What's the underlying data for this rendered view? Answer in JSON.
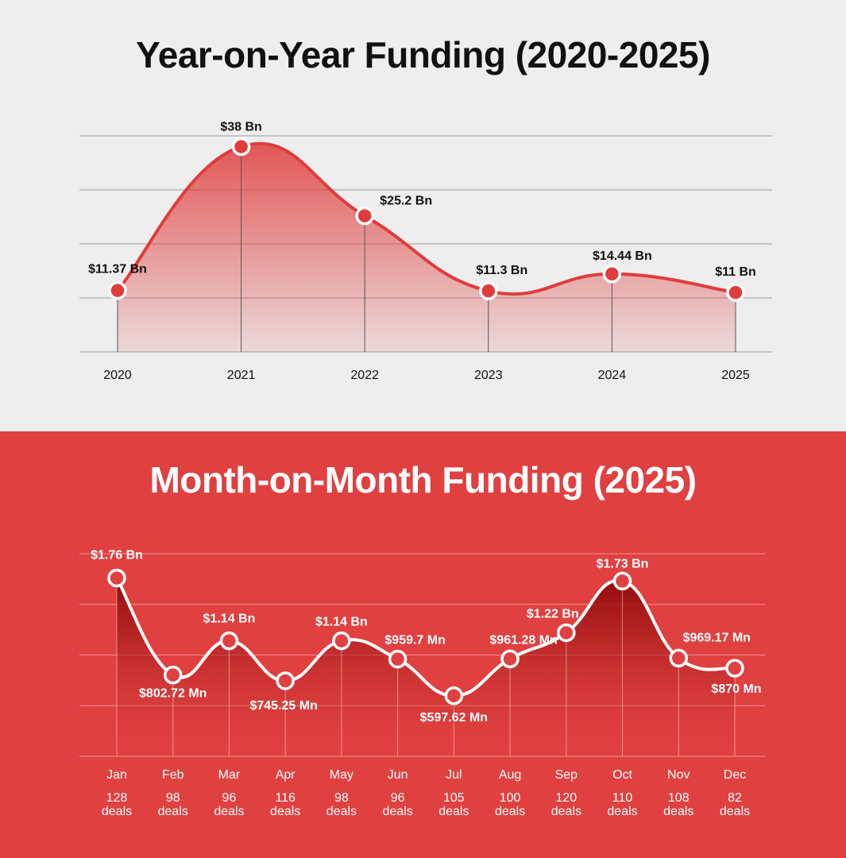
{
  "chart_data": [
    {
      "type": "area",
      "title": "Year-on-Year Funding (2020-2025)",
      "categories": [
        "2020",
        "2021",
        "2022",
        "2023",
        "2024",
        "2025"
      ],
      "values": [
        11.37,
        38,
        25.2,
        11.3,
        14.44,
        11
      ],
      "data_labels": [
        "$11.37 Bn",
        "$38 Bn",
        "$25.2 Bn",
        "$11.3 Bn",
        "$14.44 Bn",
        "$11 Bn"
      ],
      "unit": "Bn USD",
      "ylim": [
        0,
        40
      ],
      "grid": true,
      "colors": {
        "line": "#e03c3c",
        "background": "#eeeeee",
        "text": "#111111"
      }
    },
    {
      "type": "area",
      "title": "Month-on-Month Funding (2025)",
      "categories": [
        "Jan",
        "Feb",
        "Mar",
        "Apr",
        "May",
        "Jun",
        "Jul",
        "Aug",
        "Sep",
        "Oct",
        "Nov",
        "Dec"
      ],
      "values": [
        1.76,
        0.80272,
        1.14,
        0.74525,
        1.14,
        0.9597,
        0.59762,
        0.96128,
        1.22,
        1.73,
        0.96917,
        0.87
      ],
      "data_labels": [
        "$1.76 Bn",
        "$802.72 Mn",
        "$1.14 Bn",
        "$745.25 Mn",
        "$1.14 Bn",
        "$959.7 Mn",
        "$597.62 Mn",
        "$961.28 Mn",
        "$1.22 Bn",
        "$1.73 Bn",
        "$969.17 Mn",
        "$870 Mn"
      ],
      "deals": [
        "128",
        "98",
        "96",
        "116",
        "98",
        "96",
        "105",
        "100",
        "120",
        "110",
        "108",
        "82"
      ],
      "deals_suffix": "deals",
      "unit": "Bn USD",
      "ylim": [
        0,
        2
      ],
      "grid": true,
      "colors": {
        "line": "#ffffff",
        "background": "#e04040",
        "fill": "#9e1010",
        "text": "#ffffff"
      }
    }
  ]
}
